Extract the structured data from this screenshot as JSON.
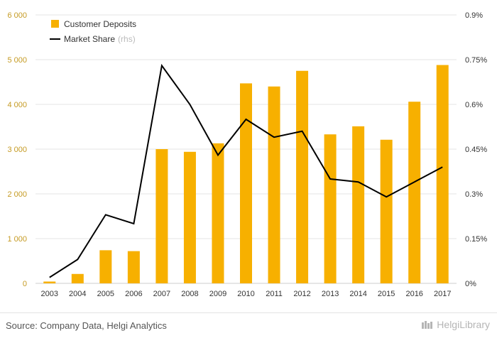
{
  "chart_data": {
    "type": "bar",
    "categories": [
      "2003",
      "2004",
      "2005",
      "2006",
      "2007",
      "2008",
      "2009",
      "2010",
      "2011",
      "2012",
      "2013",
      "2014",
      "2015",
      "2016",
      "2017"
    ],
    "series": [
      {
        "name": "Customer Deposits",
        "kind": "bar",
        "axis": "left",
        "values": [
          40,
          210,
          740,
          720,
          3000,
          2940,
          3130,
          4470,
          4400,
          4750,
          3330,
          3510,
          3210,
          4060,
          4880
        ]
      },
      {
        "name": "Market Share",
        "suffix": "(rhs)",
        "kind": "line",
        "axis": "right",
        "values": [
          0.02,
          0.08,
          0.23,
          0.2,
          0.73,
          0.6,
          0.43,
          0.55,
          0.49,
          0.51,
          0.35,
          0.34,
          0.29,
          0.34,
          0.39
        ]
      }
    ],
    "left_axis": {
      "ylim": [
        0,
        6000
      ],
      "ticks": [
        0,
        1000,
        2000,
        3000,
        4000,
        5000,
        6000
      ],
      "tick_labels": [
        "0",
        "1 000",
        "2 000",
        "3 000",
        "4 000",
        "5 000",
        "6 000"
      ]
    },
    "right_axis": {
      "ylim": [
        0,
        0.9
      ],
      "ticks": [
        0,
        0.15,
        0.3,
        0.45,
        0.6,
        0.75,
        0.9
      ],
      "tick_labels": [
        "0%",
        "0.15%",
        "0.3%",
        "0.45%",
        "0.6%",
        "0.75%",
        "0.9%"
      ]
    },
    "legend_position": "top-left",
    "grid": true,
    "colors": {
      "bar": "#f7b000",
      "line": "#000000",
      "grid": "#e6e6e6"
    }
  },
  "footer": {
    "source": "Source: Company Data, Helgi Analytics",
    "brand": "HelgiLibrary"
  }
}
